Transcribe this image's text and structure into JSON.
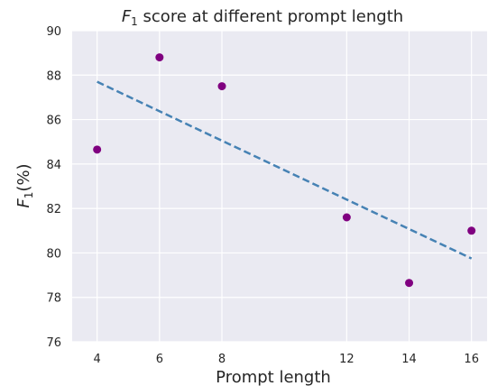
{
  "chart_data": {
    "type": "scatter",
    "title_main": "F",
    "title_sub": "1",
    "title_rest": " score at different prompt length",
    "xlabel": "Prompt length",
    "ylabel_main": "F",
    "ylabel_sub": "1",
    "ylabel_rest": "(%)",
    "xlim": [
      3.2,
      16.5
    ],
    "ylim": [
      76,
      90
    ],
    "xticks": [
      4,
      6,
      8,
      12,
      14,
      16
    ],
    "yticks": [
      76,
      78,
      80,
      82,
      84,
      86,
      88,
      90
    ],
    "grid": true,
    "points": [
      {
        "x": 4,
        "y": 84.65
      },
      {
        "x": 6,
        "y": 88.8
      },
      {
        "x": 8,
        "y": 87.5
      },
      {
        "x": 12,
        "y": 81.6
      },
      {
        "x": 14,
        "y": 78.65
      },
      {
        "x": 16,
        "y": 81.0
      }
    ],
    "trend_line": {
      "x": [
        4,
        16
      ],
      "y": [
        87.7,
        79.75
      ]
    },
    "colors": {
      "background": "#eaeaf2",
      "grid": "#ffffff",
      "point": "#800080",
      "trend": "#4682b4"
    }
  }
}
